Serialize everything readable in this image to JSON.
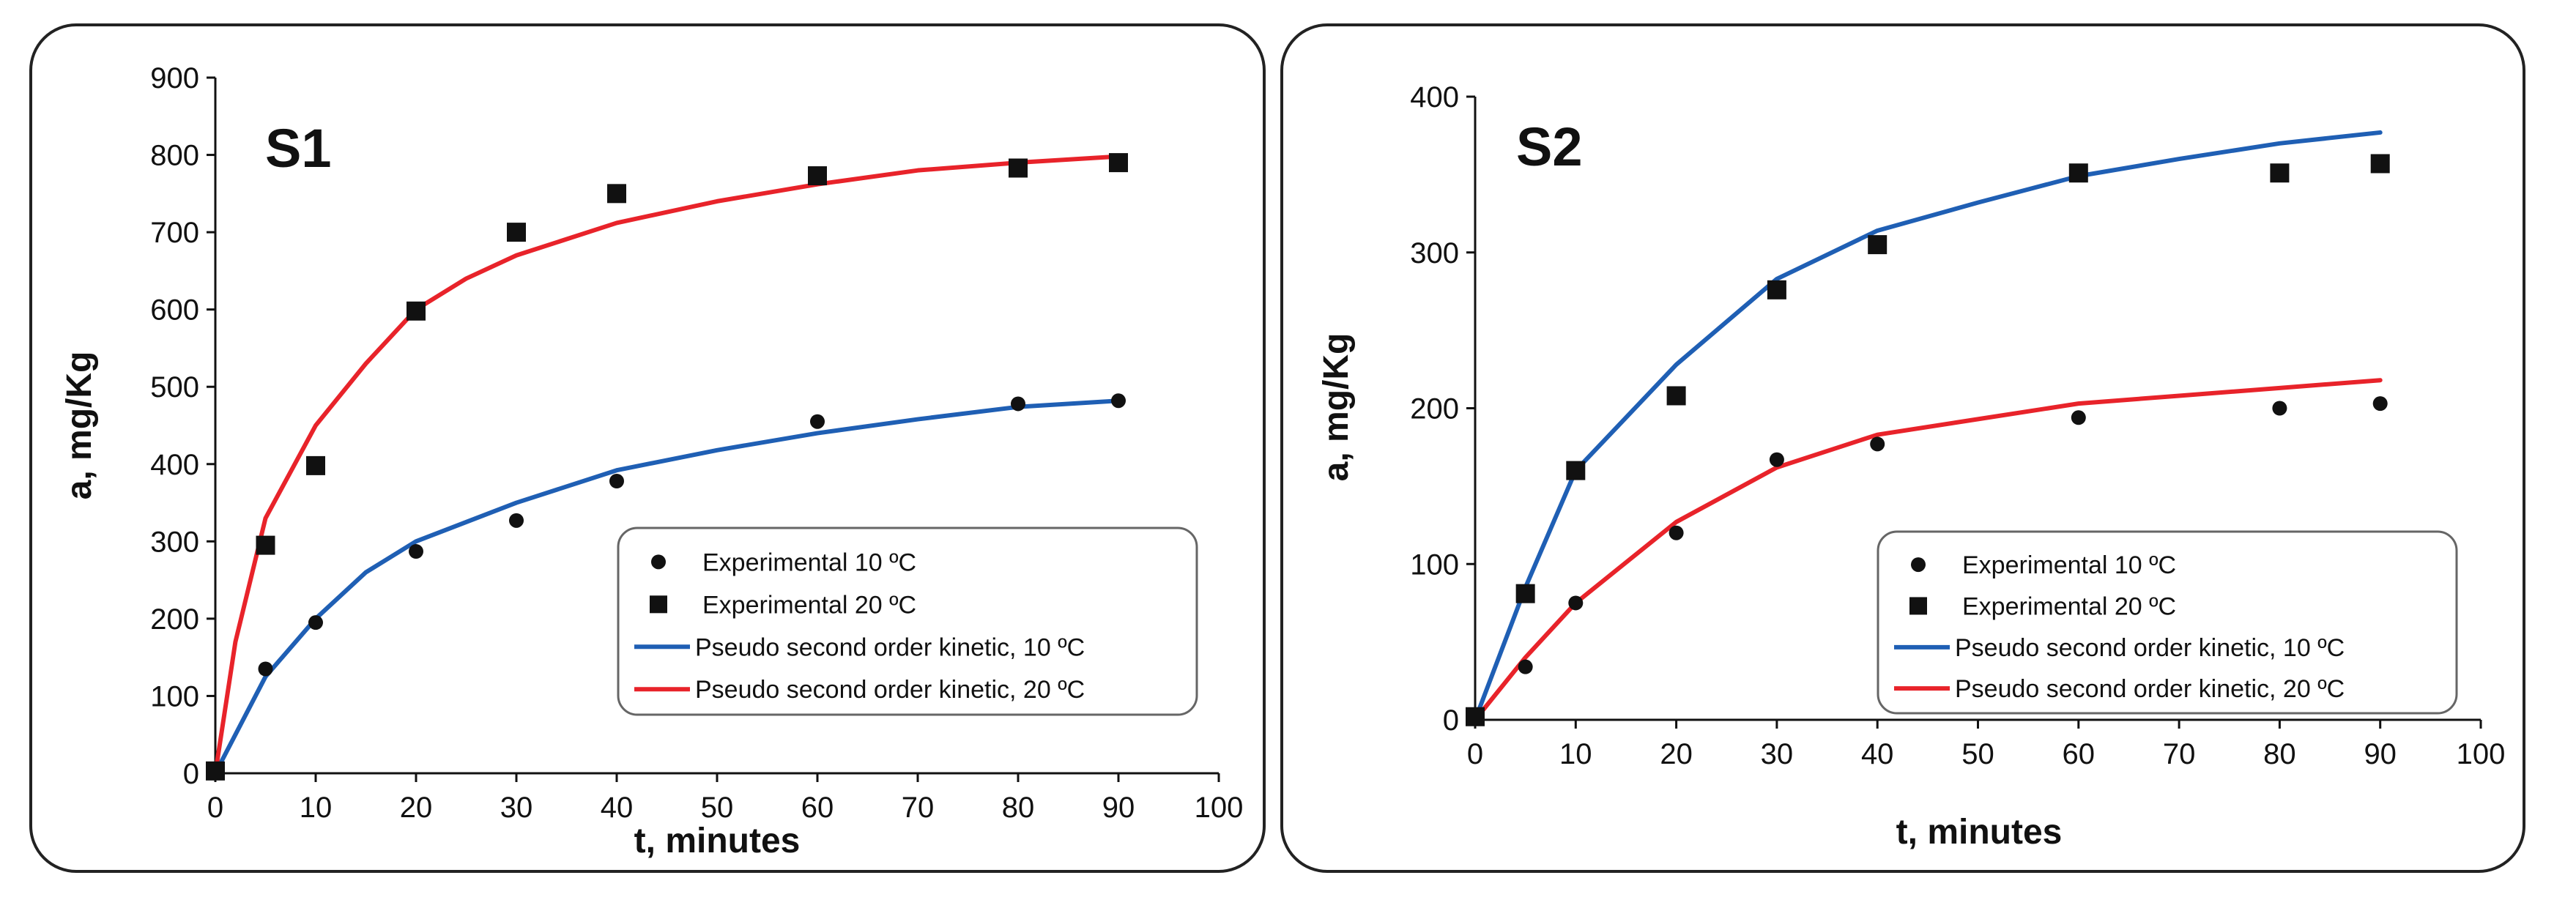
{
  "colors": {
    "blue": "#1f5fb4",
    "red": "#e8232a",
    "marker": "#111111"
  },
  "chart_data": [
    {
      "type": "scatter",
      "label": "S1",
      "xlabel": "t, minutes",
      "ylabel": "a, mg/Kg",
      "xlim": [
        0,
        100
      ],
      "ylim": [
        0,
        900
      ],
      "xticks": [
        0,
        10,
        20,
        30,
        40,
        50,
        60,
        70,
        80,
        90,
        100
      ],
      "yticks": [
        0,
        100,
        200,
        300,
        400,
        500,
        600,
        700,
        800,
        900
      ],
      "legend_position": "bottom-right",
      "series": [
        {
          "name": "Experimental 10 ºC",
          "kind": "points",
          "marker": "circle",
          "x": [
            0,
            5,
            10,
            20,
            30,
            40,
            60,
            80,
            90
          ],
          "y": [
            3,
            135,
            195,
            287,
            327,
            378,
            455,
            478,
            482
          ]
        },
        {
          "name": "Experimental 20 ºC",
          "kind": "points",
          "marker": "square",
          "x": [
            0,
            5,
            10,
            20,
            30,
            40,
            60,
            80,
            90
          ],
          "y": [
            3,
            295,
            398,
            598,
            700,
            750,
            773,
            783,
            790
          ]
        },
        {
          "name": "Pseudo second order kinetic, 10 ºC",
          "kind": "line",
          "color": "blue",
          "x": [
            0,
            5,
            10,
            15,
            20,
            30,
            40,
            50,
            60,
            70,
            80,
            90
          ],
          "y": [
            0,
            125,
            200,
            260,
            300,
            350,
            392,
            418,
            440,
            458,
            474,
            482
          ]
        },
        {
          "name": "Pseudo second order kinetic, 20 ºC",
          "kind": "line",
          "color": "red",
          "x": [
            0,
            2,
            5,
            10,
            15,
            20,
            25,
            30,
            40,
            50,
            60,
            70,
            80,
            90
          ],
          "y": [
            0,
            170,
            330,
            450,
            530,
            600,
            640,
            670,
            712,
            740,
            762,
            780,
            790,
            798
          ]
        }
      ]
    },
    {
      "type": "scatter",
      "label": "S2",
      "xlabel": "t, minutes",
      "ylabel": "a, mg/Kg",
      "xlim": [
        0,
        100
      ],
      "ylim": [
        0,
        400
      ],
      "xticks": [
        0,
        10,
        20,
        30,
        40,
        50,
        60,
        70,
        80,
        90,
        100
      ],
      "yticks": [
        0,
        100,
        200,
        300,
        400
      ],
      "legend_position": "bottom-right",
      "series": [
        {
          "name": "Experimental 10 ºC",
          "kind": "points",
          "marker": "circle",
          "x": [
            0,
            5,
            10,
            20,
            30,
            40,
            60,
            80,
            90
          ],
          "y": [
            2,
            34,
            75,
            120,
            167,
            177,
            194,
            200,
            203
          ]
        },
        {
          "name": "Experimental 20 ºC",
          "kind": "points",
          "marker": "square",
          "x": [
            0,
            5,
            10,
            20,
            30,
            40,
            60,
            80,
            90
          ],
          "y": [
            2,
            81,
            160,
            208,
            276,
            305,
            351,
            351,
            357
          ]
        },
        {
          "name": "Pseudo second order kinetic, 10 ºC",
          "kind": "line",
          "color": "blue",
          "x": [
            0,
            5,
            10,
            20,
            30,
            40,
            50,
            60,
            70,
            80,
            90
          ],
          "y": [
            0,
            85,
            160,
            228,
            283,
            314,
            332,
            349,
            360,
            370,
            377
          ]
        },
        {
          "name": "Pseudo second order kinetic, 20 ºC",
          "kind": "line",
          "color": "red",
          "x": [
            0,
            5,
            10,
            20,
            30,
            40,
            50,
            60,
            70,
            80,
            90
          ],
          "y": [
            0,
            40,
            75,
            127,
            162,
            183,
            193,
            203,
            208,
            213,
            218
          ]
        }
      ]
    }
  ]
}
